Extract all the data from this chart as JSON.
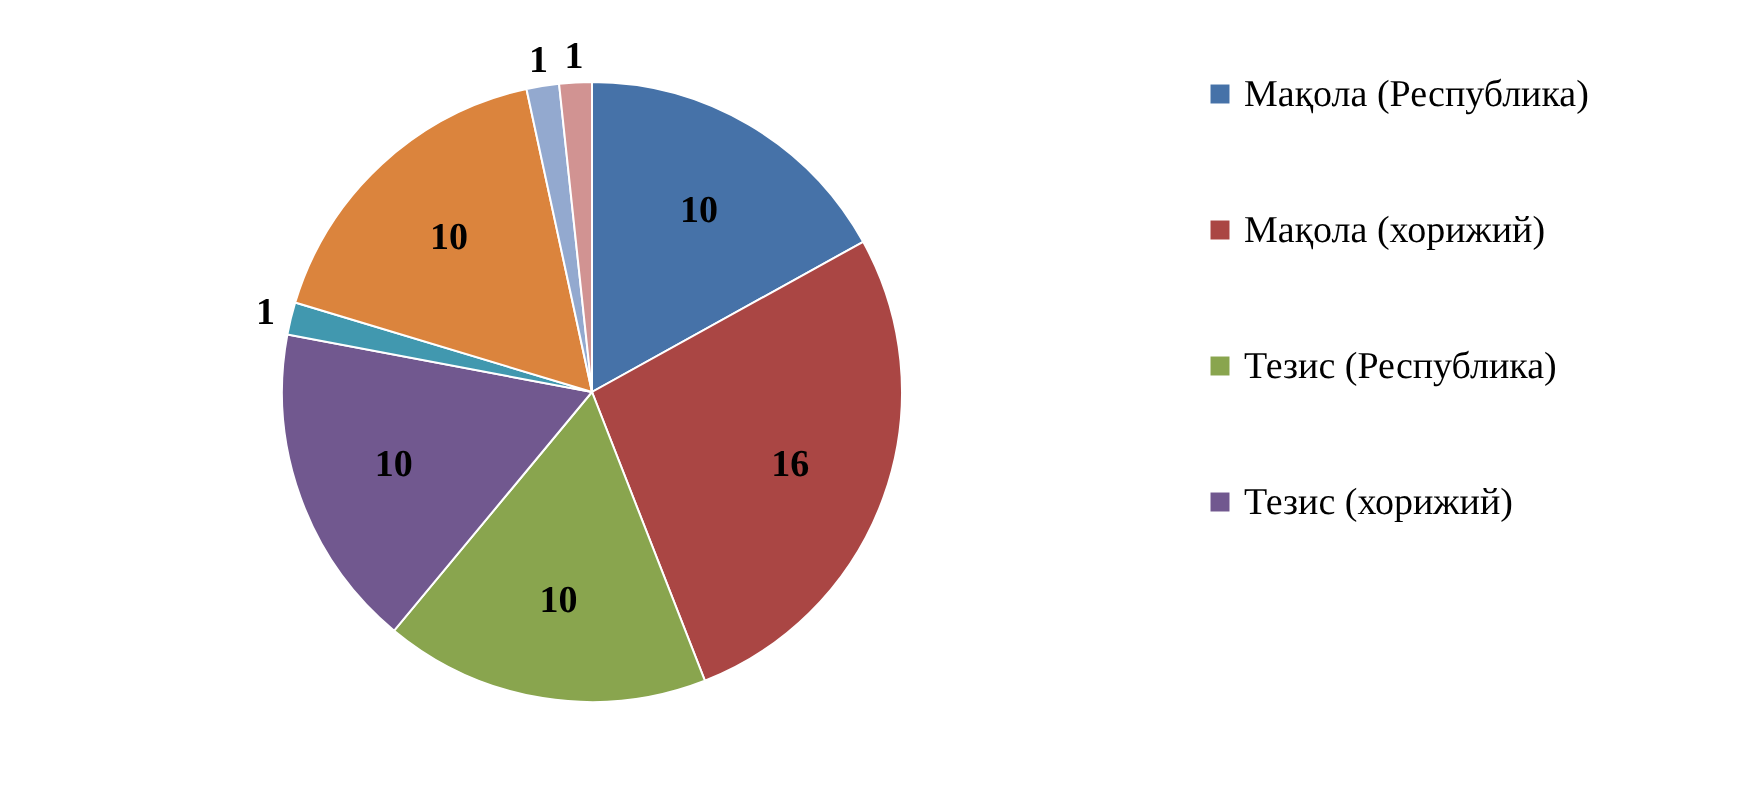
{
  "chart_data": {
    "type": "pie",
    "categories": [
      "Мақола (Республика)",
      "Мақола (хорижий)",
      "Тезис (Республика)",
      "Тезис (хорижий)",
      null,
      null,
      null,
      null
    ],
    "values": [
      10,
      16,
      10,
      10,
      1,
      10,
      1,
      1
    ],
    "colors": [
      "#4672a8",
      "#aa4644",
      "#89a54e",
      "#71588f",
      "#4198af",
      "#db843d",
      "#93a9cf",
      "#d19392"
    ],
    "data_labels": true,
    "legend": "right"
  }
}
